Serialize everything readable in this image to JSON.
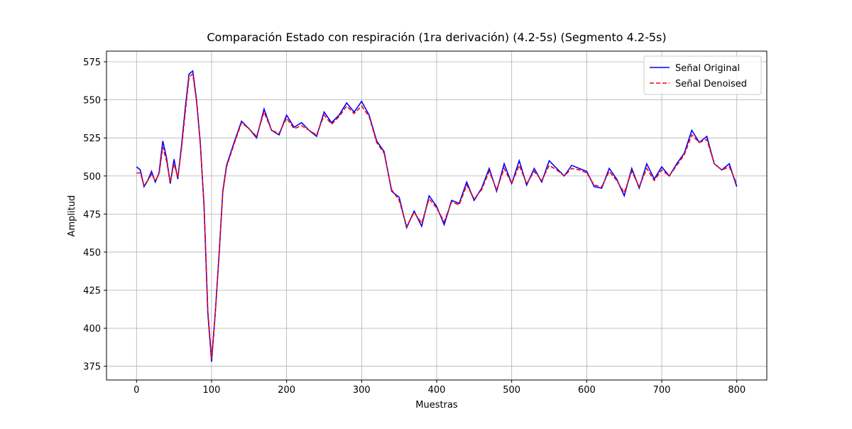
{
  "chart_data": {
    "type": "line",
    "title": "Comparación Estado con respiración (1ra derivación) (4.2-5s) (Segmento 4.2-5s)",
    "x_label": "Muestras",
    "y_label": "Amplitud",
    "x": [
      0,
      5,
      10,
      15,
      20,
      25,
      30,
      35,
      40,
      45,
      50,
      55,
      60,
      65,
      70,
      75,
      80,
      85,
      90,
      95,
      100,
      105,
      110,
      115,
      120,
      130,
      140,
      150,
      160,
      170,
      180,
      190,
      200,
      210,
      220,
      230,
      240,
      250,
      260,
      270,
      280,
      290,
      300,
      310,
      320,
      330,
      340,
      350,
      360,
      370,
      380,
      390,
      400,
      410,
      420,
      430,
      440,
      450,
      460,
      470,
      480,
      490,
      500,
      510,
      520,
      530,
      540,
      550,
      560,
      570,
      580,
      590,
      600,
      610,
      620,
      630,
      640,
      650,
      660,
      670,
      680,
      690,
      700,
      710,
      720,
      730,
      740,
      750,
      760,
      770,
      780,
      790,
      800
    ],
    "series": [
      {
        "name": "Señal Original",
        "color": "#0000ff",
        "dash": false,
        "values": [
          506,
          504,
          493,
          497,
          503,
          496,
          502,
          523,
          512,
          495,
          511,
          498,
          520,
          545,
          567,
          569,
          550,
          522,
          480,
          410,
          378,
          410,
          448,
          490,
          507,
          522,
          536,
          531,
          525,
          544,
          530,
          527,
          540,
          532,
          535,
          530,
          526,
          542,
          535,
          540,
          548,
          542,
          549,
          540,
          523,
          516,
          490,
          486,
          466,
          477,
          467,
          487,
          480,
          468,
          484,
          482,
          496,
          484,
          492,
          505,
          490,
          508,
          495,
          510,
          494,
          505,
          496,
          510,
          505,
          500,
          507,
          505,
          503,
          493,
          492,
          505,
          498,
          487,
          505,
          492,
          508,
          498,
          506,
          500,
          508,
          515,
          530,
          522,
          526,
          508,
          504,
          508,
          493
        ]
      },
      {
        "name": "Señal Denoised",
        "color": "#ff0000",
        "dash": true,
        "values": [
          502,
          502,
          494,
          497,
          501,
          497,
          501,
          519,
          510,
          496,
          508,
          499,
          518,
          542,
          565,
          567,
          549,
          521,
          481,
          412,
          380,
          410,
          447,
          489,
          506,
          521,
          535,
          531,
          526,
          542,
          530,
          528,
          538,
          531,
          533,
          530,
          527,
          540,
          534,
          539,
          546,
          541,
          546,
          539,
          522,
          515,
          491,
          484,
          467,
          476,
          469,
          485,
          479,
          470,
          483,
          481,
          494,
          485,
          491,
          503,
          491,
          505,
          495,
          507,
          495,
          503,
          497,
          507,
          504,
          500,
          505,
          504,
          502,
          494,
          493,
          503,
          497,
          489,
          503,
          493,
          505,
          497,
          504,
          500,
          507,
          514,
          527,
          522,
          524,
          508,
          504,
          506,
          495
        ]
      }
    ],
    "xlim": [
      -40,
      840
    ],
    "ylim": [
      366,
      582
    ],
    "xticks": [
      0,
      100,
      200,
      300,
      400,
      500,
      600,
      700,
      800
    ],
    "yticks": [
      375,
      400,
      425,
      450,
      475,
      500,
      525,
      550,
      575
    ],
    "grid": true,
    "legend": "upper right"
  }
}
